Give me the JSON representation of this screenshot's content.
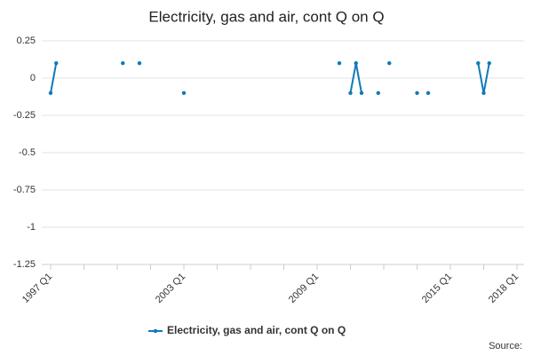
{
  "chart_data": {
    "type": "line",
    "title": "Electricity, gas and air, cont Q on Q",
    "source_label": "Source:",
    "categories": [
      "1997 Q1",
      null,
      null,
      null,
      null,
      null,
      null,
      null,
      null,
      null,
      null,
      null,
      null,
      null,
      null,
      null,
      null,
      null,
      null,
      null,
      null,
      null,
      null,
      null,
      "2003 Q1",
      null,
      null,
      null,
      null,
      null,
      null,
      null,
      null,
      null,
      null,
      null,
      null,
      null,
      null,
      null,
      null,
      null,
      null,
      null,
      null,
      null,
      null,
      null,
      "2009 Q1",
      null,
      null,
      null,
      null,
      null,
      null,
      null,
      null,
      null,
      null,
      null,
      null,
      null,
      null,
      null,
      null,
      null,
      null,
      null,
      null,
      null,
      null,
      null,
      "2015 Q1",
      null,
      null,
      null,
      null,
      null,
      null,
      null,
      null,
      null,
      null,
      null,
      "2018 Q1"
    ],
    "series": [
      {
        "name": "Electricity, gas and air, cont Q on Q",
        "color": "#0f7ab8",
        "values": [
          -0.1,
          0.1,
          null,
          null,
          null,
          null,
          null,
          null,
          null,
          null,
          null,
          null,
          null,
          0.1,
          null,
          null,
          0.1,
          null,
          null,
          null,
          null,
          null,
          null,
          null,
          -0.1,
          null,
          null,
          null,
          null,
          null,
          null,
          null,
          null,
          null,
          null,
          null,
          null,
          null,
          null,
          null,
          null,
          null,
          null,
          null,
          null,
          null,
          null,
          null,
          null,
          null,
          null,
          null,
          0.1,
          null,
          -0.1,
          0.1,
          -0.1,
          null,
          null,
          -0.1,
          null,
          0.1,
          null,
          null,
          null,
          null,
          -0.1,
          null,
          -0.1,
          null,
          null,
          null,
          null,
          null,
          null,
          null,
          null,
          0.1,
          -0.1,
          0.1,
          null,
          null,
          null,
          null,
          null
        ]
      }
    ],
    "ylim": [
      -1.25,
      0.25
    ],
    "yticks": [
      0.25,
      0,
      -0.25,
      -0.5,
      -0.75,
      -1,
      -1.25
    ],
    "grid": true,
    "legend": "bottom"
  }
}
